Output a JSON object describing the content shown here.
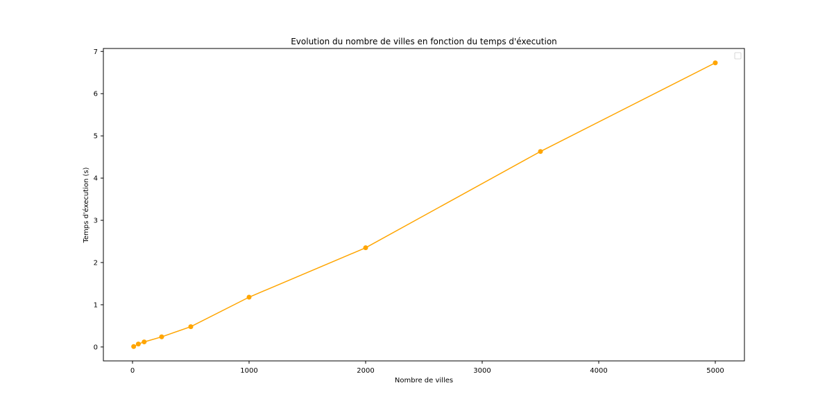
{
  "chart_data": {
    "type": "line",
    "title": "Evolution du nombre de villes en fonction du temps d'éxecution",
    "xlabel": "Nombre de villes",
    "ylabel": "Temps d'éxecution (s)",
    "x_ticks": [
      0,
      1000,
      2000,
      3000,
      4000,
      5000
    ],
    "y_ticks": [
      0,
      1,
      2,
      3,
      4,
      5,
      6,
      7
    ],
    "xlim": [
      -250,
      5250
    ],
    "ylim": [
      -0.33,
      7.07
    ],
    "grid": false,
    "legend_placement": "top-right",
    "legend_entries": [],
    "series": [
      {
        "color": "#FFA500",
        "marker": "circle",
        "x": [
          10,
          50,
          100,
          250,
          500,
          1000,
          2000,
          3500,
          5000
        ],
        "y": [
          0.01,
          0.07,
          0.12,
          0.24,
          0.48,
          1.18,
          2.35,
          4.63,
          6.73
        ]
      }
    ]
  }
}
